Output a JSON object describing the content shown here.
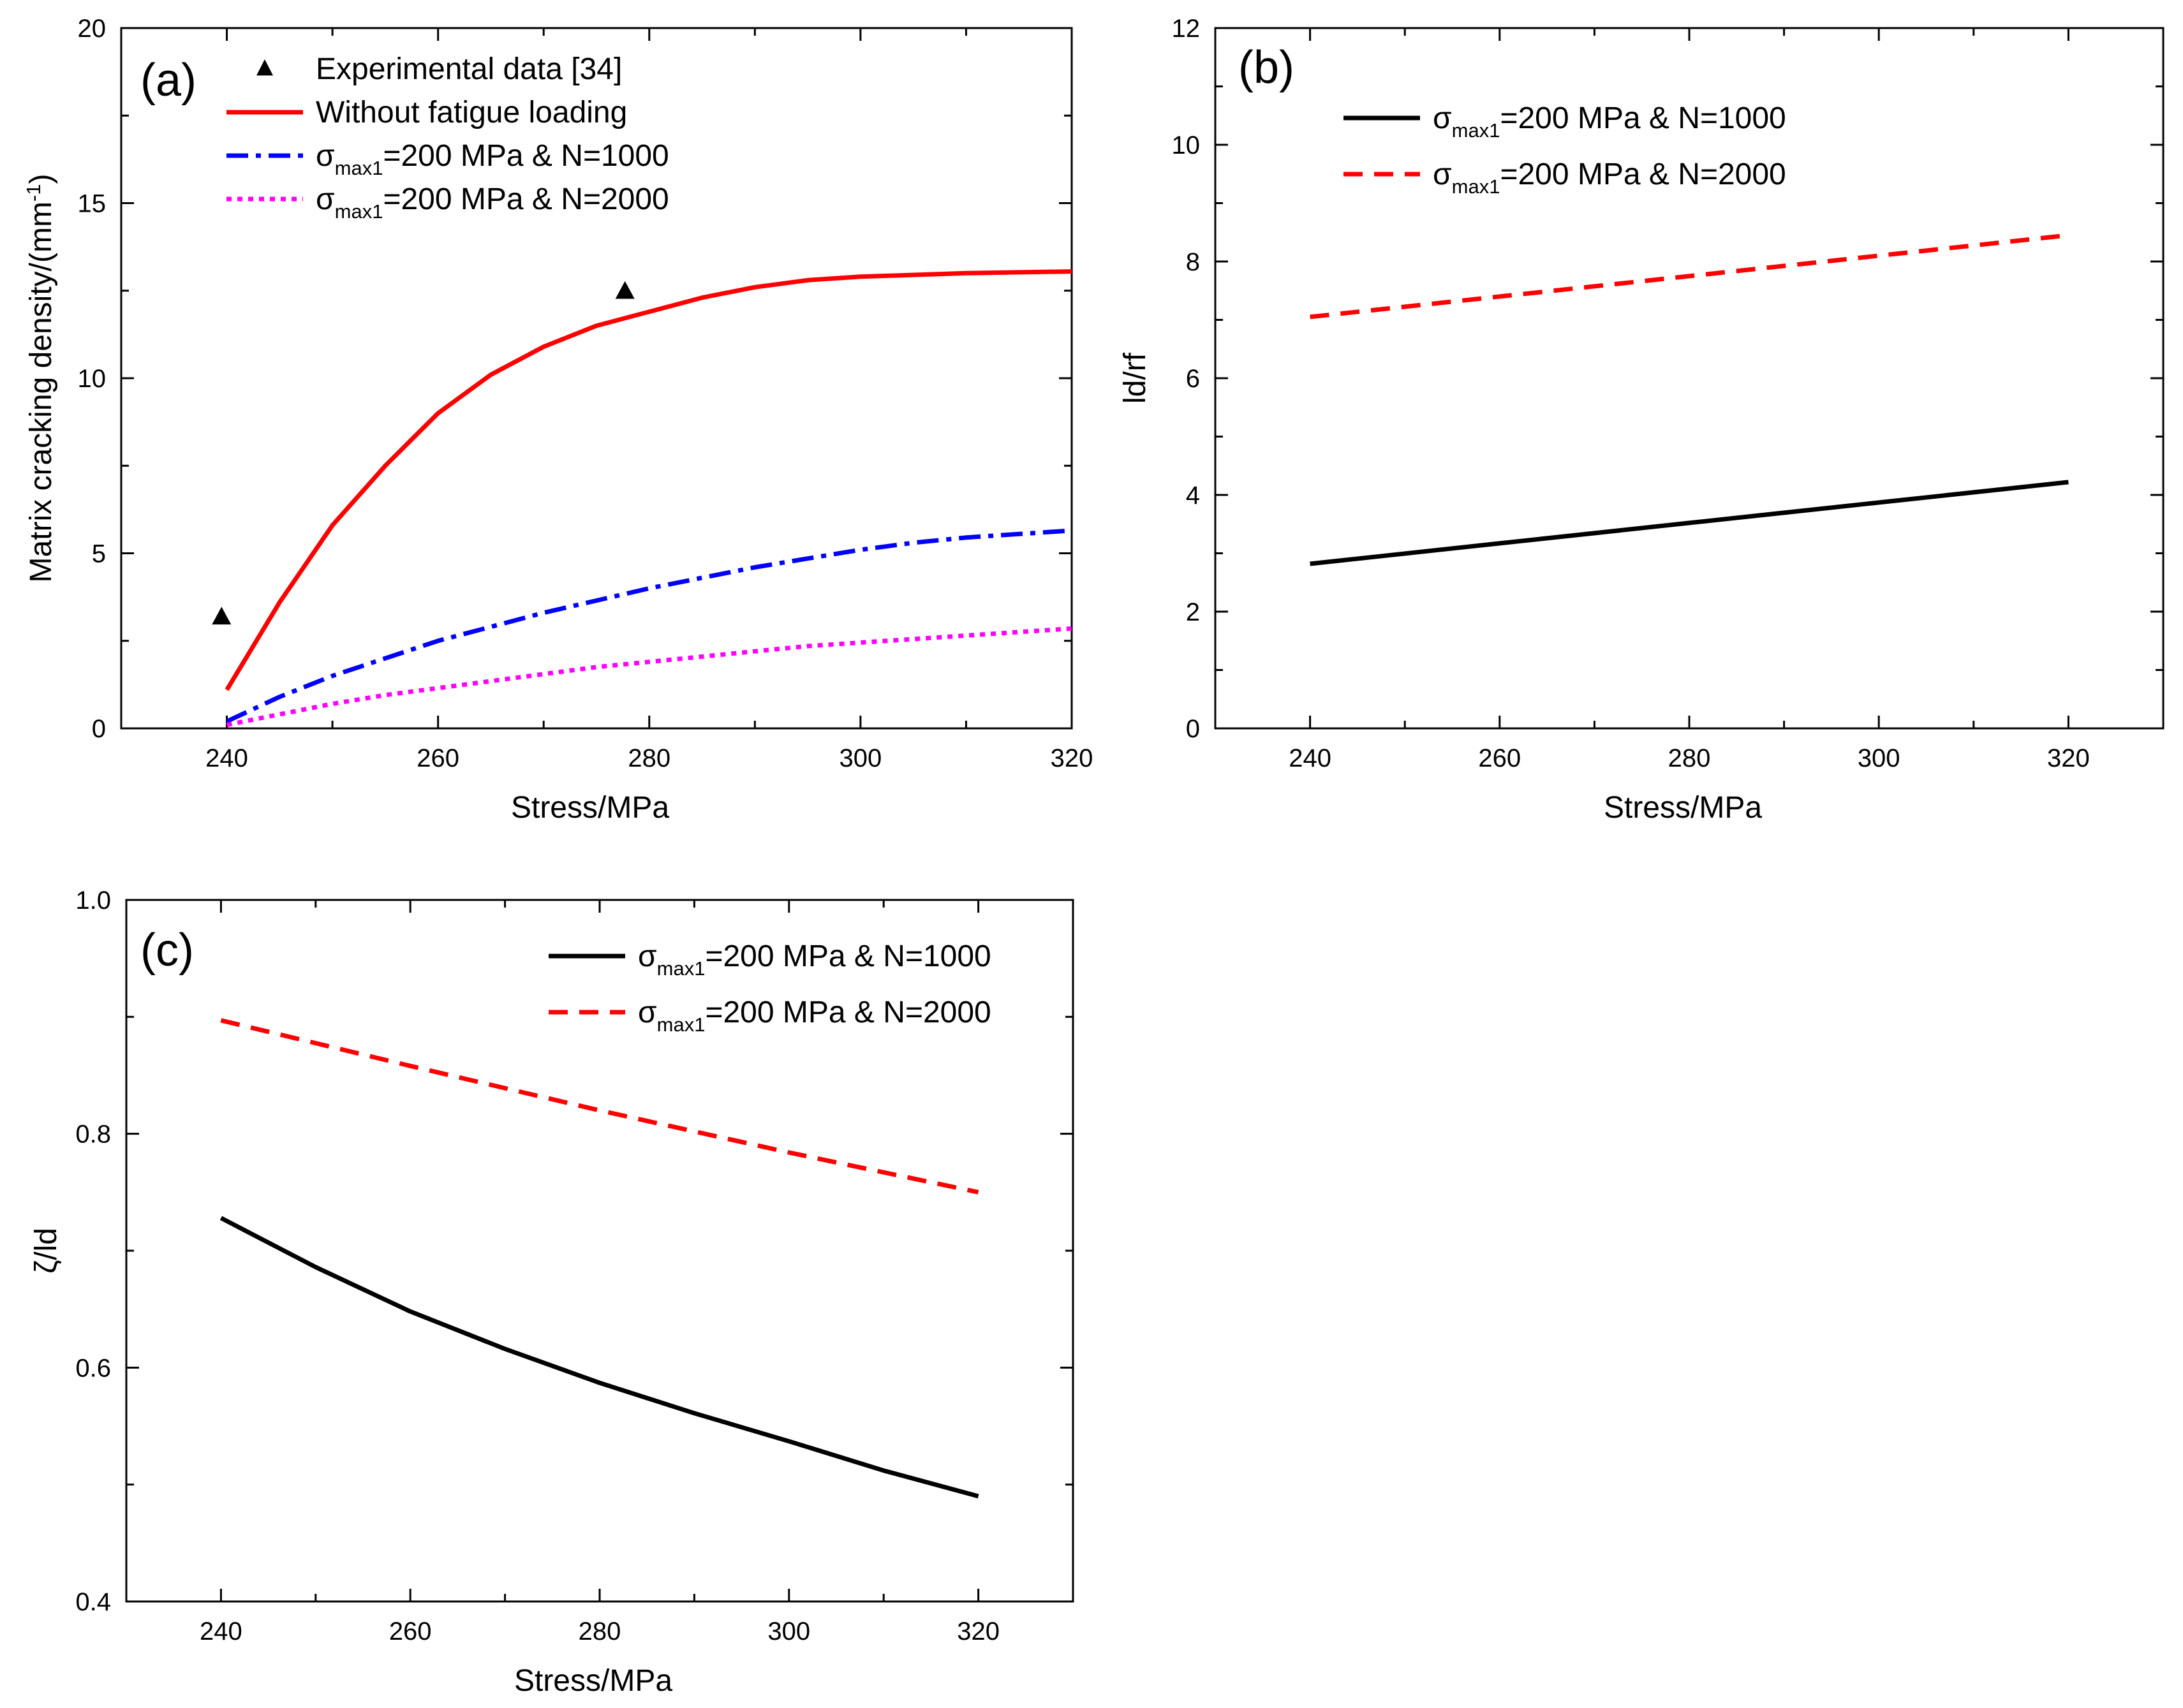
{
  "chart_data": [
    {
      "panel_label": "(a)",
      "type": "line",
      "xlabel": "Stress/MPa",
      "ylabel": "Matrix cracking density/(mm",
      "ylabel_sup": "-1",
      "ylabel_tail": ")",
      "xlim": [
        230,
        320
      ],
      "ylim": [
        0,
        20
      ],
      "xticks": [
        240,
        260,
        280,
        300,
        320
      ],
      "yticks": [
        0,
        5,
        10,
        15,
        20
      ],
      "legend_position": "top-left",
      "series": [
        {
          "name": "Experimental data [34]",
          "style": "triangle-markers",
          "color": "#000000",
          "points": [
            [
              239.5,
              3.2
            ],
            [
              277.7,
              12.5
            ]
          ]
        },
        {
          "name": "Without fatigue loading",
          "style": "solid",
          "color": "#ff0000",
          "points": [
            [
              240,
              1.1
            ],
            [
              245,
              3.6
            ],
            [
              250,
              5.8
            ],
            [
              255,
              7.5
            ],
            [
              260,
              9.0
            ],
            [
              265,
              10.1
            ],
            [
              270,
              10.9
            ],
            [
              275,
              11.5
            ],
            [
              280,
              11.9
            ],
            [
              285,
              12.3
            ],
            [
              290,
              12.6
            ],
            [
              295,
              12.8
            ],
            [
              300,
              12.9
            ],
            [
              310,
              13.0
            ],
            [
              320,
              13.05
            ]
          ]
        },
        {
          "name_prefix": "σ",
          "name_sub": "max1",
          "name_suffix": "=200 MPa & N=1000",
          "style": "dash-dot",
          "color": "#0000ff",
          "points": [
            [
              240,
              0.2
            ],
            [
              245,
              0.9
            ],
            [
              250,
              1.5
            ],
            [
              255,
              2.0
            ],
            [
              260,
              2.5
            ],
            [
              265,
              2.9
            ],
            [
              270,
              3.3
            ],
            [
              275,
              3.65
            ],
            [
              280,
              4.0
            ],
            [
              285,
              4.3
            ],
            [
              290,
              4.6
            ],
            [
              295,
              4.85
            ],
            [
              300,
              5.1
            ],
            [
              305,
              5.3
            ],
            [
              310,
              5.45
            ],
            [
              315,
              5.55
            ],
            [
              320,
              5.65
            ]
          ]
        },
        {
          "name_prefix": "σ",
          "name_sub": "max1",
          "name_suffix": "=200 MPa & N=2000",
          "style": "dotted",
          "color": "#ff00ff",
          "points": [
            [
              240,
              0.1
            ],
            [
              245,
              0.4
            ],
            [
              250,
              0.7
            ],
            [
              255,
              0.95
            ],
            [
              260,
              1.15
            ],
            [
              265,
              1.35
            ],
            [
              270,
              1.55
            ],
            [
              275,
              1.75
            ],
            [
              280,
              1.9
            ],
            [
              285,
              2.05
            ],
            [
              290,
              2.2
            ],
            [
              295,
              2.35
            ],
            [
              300,
              2.45
            ],
            [
              305,
              2.55
            ],
            [
              310,
              2.65
            ],
            [
              315,
              2.75
            ],
            [
              320,
              2.85
            ]
          ]
        }
      ]
    },
    {
      "panel_label": "(b)",
      "type": "line",
      "xlabel": "Stress/MPa",
      "ylabel": "ld/rf",
      "xlim": [
        230,
        330
      ],
      "ylim": [
        0,
        12
      ],
      "xticks": [
        240,
        260,
        280,
        300,
        320
      ],
      "yticks": [
        0,
        2,
        4,
        6,
        8,
        10,
        12
      ],
      "legend_position": "top-left",
      "series": [
        {
          "name_prefix": "σ",
          "name_sub": "max1",
          "name_suffix": "=200 MPa & N=1000",
          "style": "solid",
          "color": "#000000",
          "points": [
            [
              240,
              2.82
            ],
            [
              260,
              3.17
            ],
            [
              280,
              3.52
            ],
            [
              300,
              3.87
            ],
            [
              320,
              4.22
            ]
          ]
        },
        {
          "name_prefix": "σ",
          "name_sub": "max1",
          "name_suffix": "=200 MPa & N=2000",
          "style": "dashed",
          "color": "#ff0000",
          "points": [
            [
              240,
              7.05
            ],
            [
              260,
              7.4
            ],
            [
              280,
              7.75
            ],
            [
              300,
              8.1
            ],
            [
              320,
              8.45
            ]
          ]
        }
      ]
    },
    {
      "panel_label": "(c)",
      "type": "line",
      "xlabel": "Stress/MPa",
      "ylabel": "ζ/ld",
      "xlim": [
        230,
        330
      ],
      "ylim": [
        0.4,
        1.0
      ],
      "xticks": [
        240,
        260,
        280,
        300,
        320
      ],
      "yticks": [
        0.4,
        0.6,
        0.8,
        1.0
      ],
      "ytick_labels": [
        "0.4",
        "0.6",
        "0.8",
        "1.0"
      ],
      "legend_position": "top-right",
      "series": [
        {
          "name_prefix": "σ",
          "name_sub": "max1",
          "name_suffix": "=200 MPa & N=1000",
          "style": "solid",
          "color": "#000000",
          "points": [
            [
              240,
              0.728
            ],
            [
              250,
              0.686
            ],
            [
              260,
              0.648
            ],
            [
              270,
              0.616
            ],
            [
              280,
              0.587
            ],
            [
              290,
              0.561
            ],
            [
              300,
              0.537
            ],
            [
              310,
              0.512
            ],
            [
              320,
              0.49
            ]
          ]
        },
        {
          "name_prefix": "σ",
          "name_sub": "max1",
          "name_suffix": "=200 MPa & N=2000",
          "style": "dashed",
          "color": "#ff0000",
          "points": [
            [
              240,
              0.897
            ],
            [
              260,
              0.858
            ],
            [
              280,
              0.82
            ],
            [
              300,
              0.784
            ],
            [
              320,
              0.75
            ]
          ]
        }
      ]
    }
  ]
}
